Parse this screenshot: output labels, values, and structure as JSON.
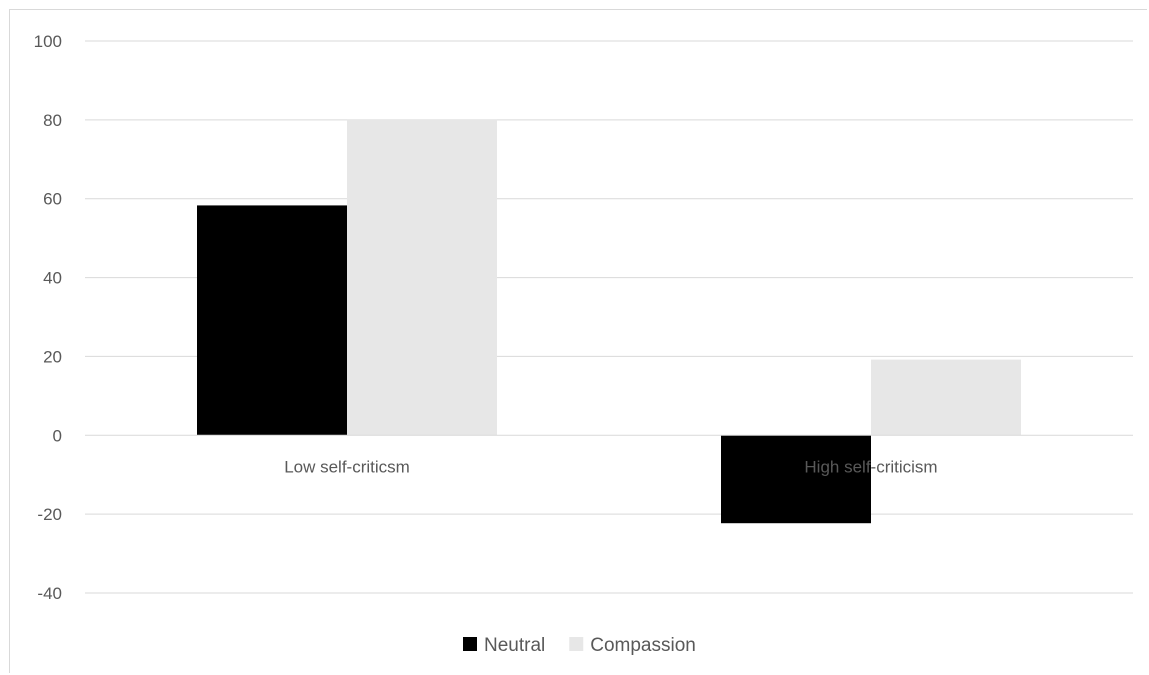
{
  "chart_data": {
    "type": "bar",
    "title": "",
    "xlabel": "",
    "ylabel": "",
    "categories": [
      "Low self-criticsm",
      "High self-criticism"
    ],
    "series": [
      {
        "name": "Neutral",
        "values": [
          58.3,
          -22.3
        ],
        "color": "#000000"
      },
      {
        "name": "Compassion",
        "values": [
          80,
          19.2
        ],
        "color": "#e7e7e7"
      }
    ],
    "ylim": [
      -40,
      100
    ],
    "yticks": [
      -40,
      -20,
      0,
      20,
      40,
      60,
      80,
      100
    ],
    "grid": true,
    "legend_position": "bottom"
  }
}
